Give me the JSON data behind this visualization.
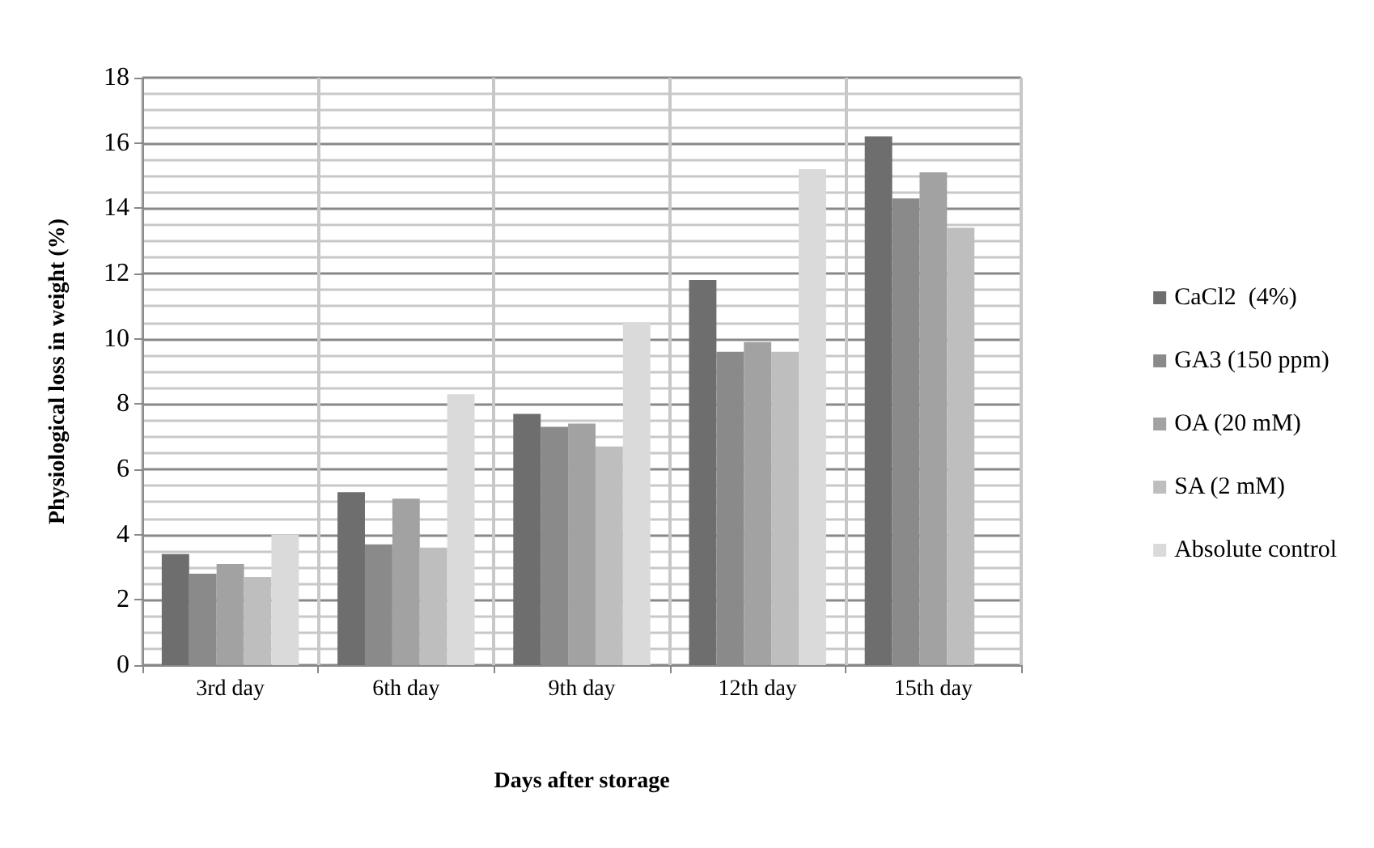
{
  "chart_data": {
    "type": "bar",
    "xlabel": "Days after storage",
    "ylabel": "Physiological loss in weight (%)",
    "categories": [
      "3rd day",
      "6th day",
      "9th day",
      "12th day",
      "15th day"
    ],
    "series": [
      {
        "name": "CaCl2  (4%)",
        "color": "#6e6e6e",
        "values": [
          3.4,
          5.3,
          7.7,
          11.8,
          16.2
        ]
      },
      {
        "name": "GA3 (150 ppm)",
        "color": "#8a8a8a",
        "values": [
          2.8,
          3.7,
          7.3,
          9.6,
          14.3
        ]
      },
      {
        "name": "OA (20 mM)",
        "color": "#a2a2a2",
        "values": [
          3.1,
          5.1,
          7.4,
          9.9,
          15.1
        ]
      },
      {
        "name": "SA (2 mM)",
        "color": "#bebebe",
        "values": [
          2.7,
          3.6,
          6.7,
          9.6,
          13.4
        ]
      },
      {
        "name": "Absolute control",
        "color": "#dadada",
        "values": [
          4.0,
          8.3,
          10.5,
          15.2,
          null
        ]
      }
    ],
    "ylim": [
      0,
      18
    ],
    "yticks": [
      0,
      2,
      4,
      6,
      8,
      10,
      12,
      14,
      16,
      18
    ],
    "grid": true,
    "legend": "right"
  }
}
